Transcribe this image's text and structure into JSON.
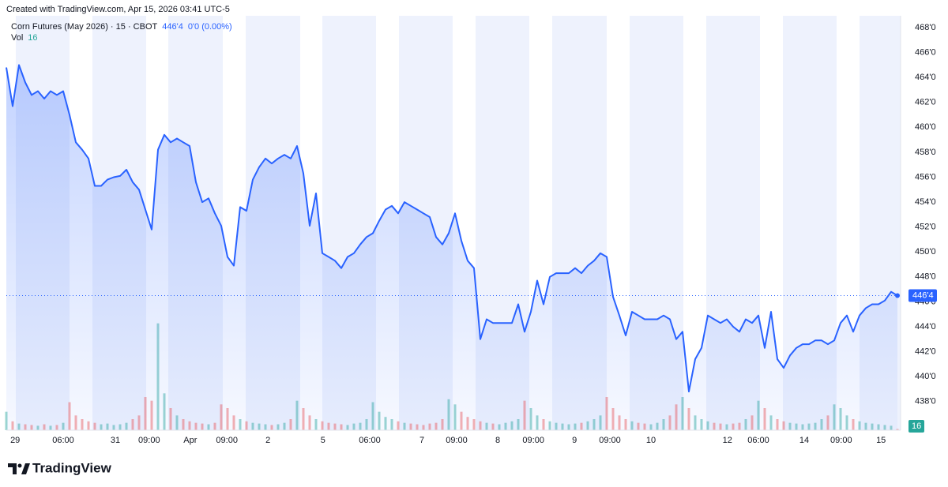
{
  "created_note": "Created with TradingView.com, Apr 15, 2026 03:41 UTC-5",
  "branding": "TradingView",
  "chart_data": {
    "type": "line",
    "title": "Corn Futures (May 2026) · 15 · CBOT",
    "last_value_label": "446'4",
    "change_label": "0'0 (0.00%)",
    "volume_title": "Vol",
    "color": "#2962ff",
    "up_color": "#26a69a",
    "down_color": "#ef5350",
    "values": [
      464.8,
      461.7,
      465.0,
      463.6,
      462.6,
      462.9,
      462.3,
      462.9,
      462.6,
      462.9,
      461.0,
      458.8,
      458.2,
      457.5,
      455.3,
      455.3,
      455.8,
      456.0,
      456.1,
      456.6,
      455.6,
      455.0,
      453.4,
      451.8,
      458.2,
      459.4,
      458.8,
      459.1,
      458.8,
      458.5,
      455.6,
      454.0,
      454.3,
      453.1,
      452.1,
      449.6,
      448.9,
      453.6,
      453.3,
      455.8,
      456.8,
      457.5,
      457.1,
      457.5,
      457.8,
      457.5,
      458.5,
      456.3,
      452.1,
      454.7,
      449.9,
      449.6,
      449.3,
      448.7,
      449.6,
      449.9,
      450.6,
      451.2,
      451.5,
      452.5,
      453.4,
      453.7,
      453.1,
      454.0,
      453.7,
      453.4,
      453.1,
      452.8,
      451.2,
      450.6,
      451.5,
      453.1,
      450.9,
      449.3,
      448.7,
      443.0,
      444.6,
      444.3,
      444.3,
      444.3,
      444.3,
      445.8,
      443.6,
      445.2,
      447.7,
      445.8,
      448.0,
      448.3,
      448.3,
      448.3,
      448.7,
      448.3,
      448.9,
      449.3,
      449.9,
      449.6,
      446.4,
      444.9,
      443.3,
      445.2,
      444.9,
      444.6,
      444.6,
      444.6,
      444.9,
      444.6,
      443.0,
      443.6,
      438.8,
      441.4,
      442.3,
      444.9,
      444.6,
      444.3,
      444.6,
      444.0,
      443.6,
      444.6,
      444.3,
      444.9,
      442.3,
      445.2,
      441.4,
      440.7,
      441.7,
      442.3,
      442.6,
      442.6,
      442.9,
      442.9,
      442.6,
      442.9,
      444.3,
      444.9,
      443.6,
      444.9,
      445.5,
      445.8,
      445.8,
      446.1,
      446.8,
      446.5
    ],
    "volume": [
      250,
      120,
      90,
      80,
      70,
      60,
      80,
      60,
      70,
      100,
      380,
      200,
      150,
      120,
      100,
      80,
      90,
      70,
      80,
      100,
      150,
      200,
      450,
      400,
      1450,
      500,
      300,
      200,
      150,
      120,
      100,
      90,
      80,
      100,
      350,
      300,
      200,
      150,
      120,
      100,
      90,
      80,
      70,
      80,
      100,
      150,
      400,
      300,
      200,
      150,
      120,
      100,
      90,
      80,
      70,
      90,
      100,
      150,
      380,
      250,
      180,
      150,
      120,
      100,
      90,
      80,
      70,
      90,
      100,
      150,
      420,
      350,
      250,
      180,
      150,
      120,
      100,
      90,
      80,
      100,
      120,
      150,
      400,
      300,
      200,
      150,
      120,
      100,
      90,
      80,
      90,
      100,
      120,
      150,
      200,
      450,
      300,
      200,
      150,
      120,
      100,
      90,
      80,
      100,
      150,
      200,
      350,
      450,
      300,
      200,
      150,
      120,
      100,
      90,
      80,
      90,
      100,
      150,
      200,
      400,
      300,
      200,
      150,
      120,
      100,
      90,
      80,
      90,
      100,
      150,
      200,
      350,
      300,
      200,
      150,
      120,
      100,
      90,
      80,
      70,
      60,
      16
    ],
    "volume_lim": [
      0,
      1500
    ],
    "xlim": [
      0,
      141.5
    ],
    "xticks": [
      {
        "value": 1.4,
        "label": "29"
      },
      {
        "value": 9,
        "label": "06:00"
      },
      {
        "value": 17.25,
        "label": "31"
      },
      {
        "value": 22.6,
        "label": "09:00"
      },
      {
        "value": 29.1,
        "label": "Apr"
      },
      {
        "value": 34.9,
        "label": "09:00"
      },
      {
        "value": 41.4,
        "label": "2"
      },
      {
        "value": 50.1,
        "label": "5"
      },
      {
        "value": 57.5,
        "label": "06:00"
      },
      {
        "value": 65.75,
        "label": "7"
      },
      {
        "value": 71.25,
        "label": "09:00"
      },
      {
        "value": 77.75,
        "label": "8"
      },
      {
        "value": 83.4,
        "label": "09:00"
      },
      {
        "value": 89.9,
        "label": "9"
      },
      {
        "value": 95.5,
        "label": "09:00"
      },
      {
        "value": 102,
        "label": "10"
      },
      {
        "value": 114.1,
        "label": "12"
      },
      {
        "value": 119,
        "label": "06:00"
      },
      {
        "value": 126.25,
        "label": "14"
      },
      {
        "value": 132.1,
        "label": "09:00"
      },
      {
        "value": 138.4,
        "label": "15"
      }
    ],
    "ylim": [
      435.7,
      468.95
    ],
    "yticks": [
      {
        "value": 438,
        "label": "438'0"
      },
      {
        "value": 440,
        "label": "440'0"
      },
      {
        "value": 442,
        "label": "442'0"
      },
      {
        "value": 444,
        "label": "444'0"
      },
      {
        "value": 446,
        "label": "446'0"
      },
      {
        "value": 448,
        "label": "448'0"
      },
      {
        "value": 450,
        "label": "450'0"
      },
      {
        "value": 452,
        "label": "452'0"
      },
      {
        "value": 454,
        "label": "454'0"
      },
      {
        "value": 456,
        "label": "456'0"
      },
      {
        "value": 458,
        "label": "458'0"
      },
      {
        "value": 460,
        "label": "460'0"
      },
      {
        "value": 462,
        "label": "462'0"
      },
      {
        "value": 464,
        "label": "464'0"
      },
      {
        "value": 466,
        "label": "466'0"
      },
      {
        "value": 468,
        "label": "468'0"
      }
    ]
  }
}
